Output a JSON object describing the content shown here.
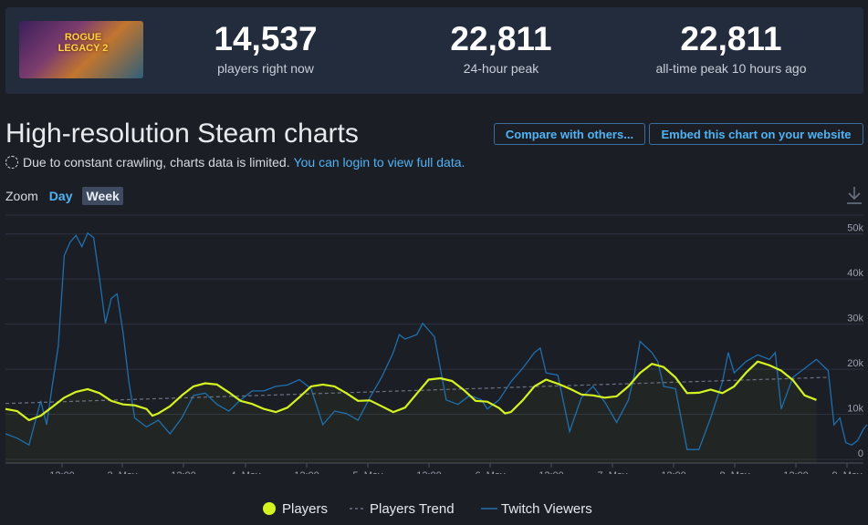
{
  "header": {
    "game_art_alt": "ROGUE LEGACY 2",
    "stats": [
      {
        "value": "14,537",
        "label": "players right now"
      },
      {
        "value": "22,811",
        "label": "24-hour peak"
      },
      {
        "value": "22,811",
        "label": "all-time peak 10 hours ago"
      }
    ]
  },
  "page": {
    "title": "High-resolution Steam charts",
    "compare_label": "Compare with others...",
    "embed_label": "Embed this chart on your website",
    "notice_text": "Due to constant crawling, charts data is limited.",
    "notice_link": "You can login to view full data.",
    "zoom_label": "Zoom",
    "zoom_day": "Day",
    "zoom_week": "Week"
  },
  "icons": {
    "download": "download-icon",
    "notice": "loading-circle-icon"
  },
  "colors": {
    "players": "#d4f321",
    "trend": "#6b7280",
    "twitch": "#1f6fae",
    "accent": "#4fb3f4"
  },
  "chart_data": {
    "type": "line",
    "x_tick_labels": [
      "12:00",
      "3. May",
      "12:00",
      "4. May",
      "12:00",
      "5. May",
      "12:00",
      "6. May",
      "12:00",
      "7. May",
      "12:00",
      "8. May",
      "12:00",
      "9. May"
    ],
    "y_tick_labels": [
      "0",
      "10k",
      "20k",
      "30k",
      "40k",
      "50k"
    ],
    "ylim": [
      0,
      55000
    ],
    "xlim_days": [
      0,
      7.3
    ],
    "grid": true,
    "legend_position": "bottom-center",
    "series": [
      {
        "name": "Players",
        "style": "solid-thick",
        "points": [
          [
            0.0,
            12000
          ],
          [
            0.1,
            11500
          ],
          [
            0.2,
            9500
          ],
          [
            0.3,
            10500
          ],
          [
            0.4,
            12500
          ],
          [
            0.5,
            14500
          ],
          [
            0.6,
            15800
          ],
          [
            0.7,
            16400
          ],
          [
            0.8,
            15500
          ],
          [
            0.9,
            13800
          ],
          [
            1.0,
            13000
          ],
          [
            1.1,
            12800
          ],
          [
            1.2,
            12000
          ],
          [
            1.25,
            10500
          ],
          [
            1.3,
            11000
          ],
          [
            1.4,
            12600
          ],
          [
            1.5,
            15000
          ],
          [
            1.6,
            17000
          ],
          [
            1.7,
            17700
          ],
          [
            1.8,
            17400
          ],
          [
            1.9,
            15700
          ],
          [
            2.0,
            13800
          ],
          [
            2.1,
            13100
          ],
          [
            2.2,
            12000
          ],
          [
            2.3,
            11300
          ],
          [
            2.4,
            12300
          ],
          [
            2.5,
            14600
          ],
          [
            2.6,
            17000
          ],
          [
            2.7,
            17400
          ],
          [
            2.8,
            17000
          ],
          [
            2.9,
            15500
          ],
          [
            3.0,
            13800
          ],
          [
            3.1,
            13900
          ],
          [
            3.2,
            12600
          ],
          [
            3.3,
            11300
          ],
          [
            3.4,
            12300
          ],
          [
            3.5,
            15400
          ],
          [
            3.6,
            18500
          ],
          [
            3.7,
            18800
          ],
          [
            3.8,
            18200
          ],
          [
            3.9,
            16200
          ],
          [
            4.0,
            13800
          ],
          [
            4.1,
            13600
          ],
          [
            4.2,
            12200
          ],
          [
            4.25,
            11000
          ],
          [
            4.3,
            11300
          ],
          [
            4.4,
            13900
          ],
          [
            4.5,
            17000
          ],
          [
            4.6,
            18500
          ],
          [
            4.7,
            17600
          ],
          [
            4.8,
            16500
          ],
          [
            4.9,
            15200
          ],
          [
            5.0,
            15000
          ],
          [
            5.1,
            14500
          ],
          [
            5.2,
            14800
          ],
          [
            5.3,
            17000
          ],
          [
            5.4,
            20000
          ],
          [
            5.5,
            22000
          ],
          [
            5.6,
            21300
          ],
          [
            5.7,
            19000
          ],
          [
            5.8,
            15500
          ],
          [
            5.9,
            15600
          ],
          [
            6.0,
            16300
          ],
          [
            6.1,
            15500
          ],
          [
            6.2,
            17000
          ],
          [
            6.3,
            20000
          ],
          [
            6.4,
            22500
          ],
          [
            6.5,
            21700
          ],
          [
            6.6,
            20500
          ],
          [
            6.7,
            18400
          ],
          [
            6.8,
            15000
          ],
          [
            6.9,
            14000
          ]
        ]
      },
      {
        "name": "Players Trend",
        "style": "dashed",
        "points": [
          [
            0.0,
            13200
          ],
          [
            7.0,
            19000
          ]
        ]
      },
      {
        "name": "Twitch Viewers",
        "style": "solid-thin",
        "points": [
          [
            0.0,
            6500
          ],
          [
            0.1,
            5500
          ],
          [
            0.2,
            4000
          ],
          [
            0.3,
            13800
          ],
          [
            0.35,
            8500
          ],
          [
            0.4,
            17500
          ],
          [
            0.45,
            26000
          ],
          [
            0.5,
            46000
          ],
          [
            0.55,
            49000
          ],
          [
            0.6,
            50500
          ],
          [
            0.65,
            48000
          ],
          [
            0.7,
            51000
          ],
          [
            0.75,
            50000
          ],
          [
            0.8,
            41000
          ],
          [
            0.85,
            31000
          ],
          [
            0.9,
            36500
          ],
          [
            0.95,
            37500
          ],
          [
            1.0,
            29000
          ],
          [
            1.05,
            18000
          ],
          [
            1.1,
            10000
          ],
          [
            1.2,
            8000
          ],
          [
            1.3,
            9500
          ],
          [
            1.4,
            6500
          ],
          [
            1.5,
            10000
          ],
          [
            1.6,
            15000
          ],
          [
            1.7,
            15500
          ],
          [
            1.8,
            13000
          ],
          [
            1.9,
            11500
          ],
          [
            2.0,
            14000
          ],
          [
            2.1,
            16000
          ],
          [
            2.2,
            16000
          ],
          [
            2.3,
            17000
          ],
          [
            2.4,
            17300
          ],
          [
            2.5,
            18500
          ],
          [
            2.6,
            16500
          ],
          [
            2.7,
            8500
          ],
          [
            2.8,
            11500
          ],
          [
            2.9,
            11000
          ],
          [
            3.0,
            9500
          ],
          [
            3.1,
            14500
          ],
          [
            3.2,
            19000
          ],
          [
            3.3,
            24500
          ],
          [
            3.35,
            28500
          ],
          [
            3.4,
            27500
          ],
          [
            3.5,
            28500
          ],
          [
            3.55,
            31000
          ],
          [
            3.65,
            28000
          ],
          [
            3.75,
            14000
          ],
          [
            3.85,
            13000
          ],
          [
            3.95,
            15000
          ],
          [
            4.05,
            14000
          ],
          [
            4.1,
            12000
          ],
          [
            4.2,
            14000
          ],
          [
            4.3,
            18000
          ],
          [
            4.4,
            21000
          ],
          [
            4.5,
            24500
          ],
          [
            4.55,
            25500
          ],
          [
            4.6,
            20000
          ],
          [
            4.7,
            19500
          ],
          [
            4.8,
            7000
          ],
          [
            4.9,
            14500
          ],
          [
            5.0,
            17000
          ],
          [
            5.1,
            13500
          ],
          [
            5.2,
            9000
          ],
          [
            5.3,
            14000
          ],
          [
            5.35,
            19500
          ],
          [
            5.4,
            27000
          ],
          [
            5.5,
            24500
          ],
          [
            5.55,
            22500
          ],
          [
            5.6,
            17000
          ],
          [
            5.7,
            16500
          ],
          [
            5.8,
            3000
          ],
          [
            5.9,
            3000
          ],
          [
            6.0,
            10000
          ],
          [
            6.1,
            18000
          ],
          [
            6.15,
            24500
          ],
          [
            6.2,
            20000
          ],
          [
            6.3,
            22500
          ],
          [
            6.4,
            24000
          ],
          [
            6.5,
            23000
          ],
          [
            6.55,
            24500
          ],
          [
            6.6,
            12000
          ],
          [
            6.7,
            19000
          ],
          [
            6.8,
            21000
          ],
          [
            6.9,
            23000
          ],
          [
            7.0,
            20500
          ],
          [
            7.05,
            8500
          ],
          [
            7.1,
            10000
          ],
          [
            7.15,
            4500
          ],
          [
            7.2,
            4000
          ],
          [
            7.25,
            5000
          ],
          [
            7.3,
            7500
          ],
          [
            7.33,
            8500
          ]
        ]
      }
    ],
    "legend": [
      "Players",
      "Players Trend",
      "Twitch Viewers"
    ]
  }
}
